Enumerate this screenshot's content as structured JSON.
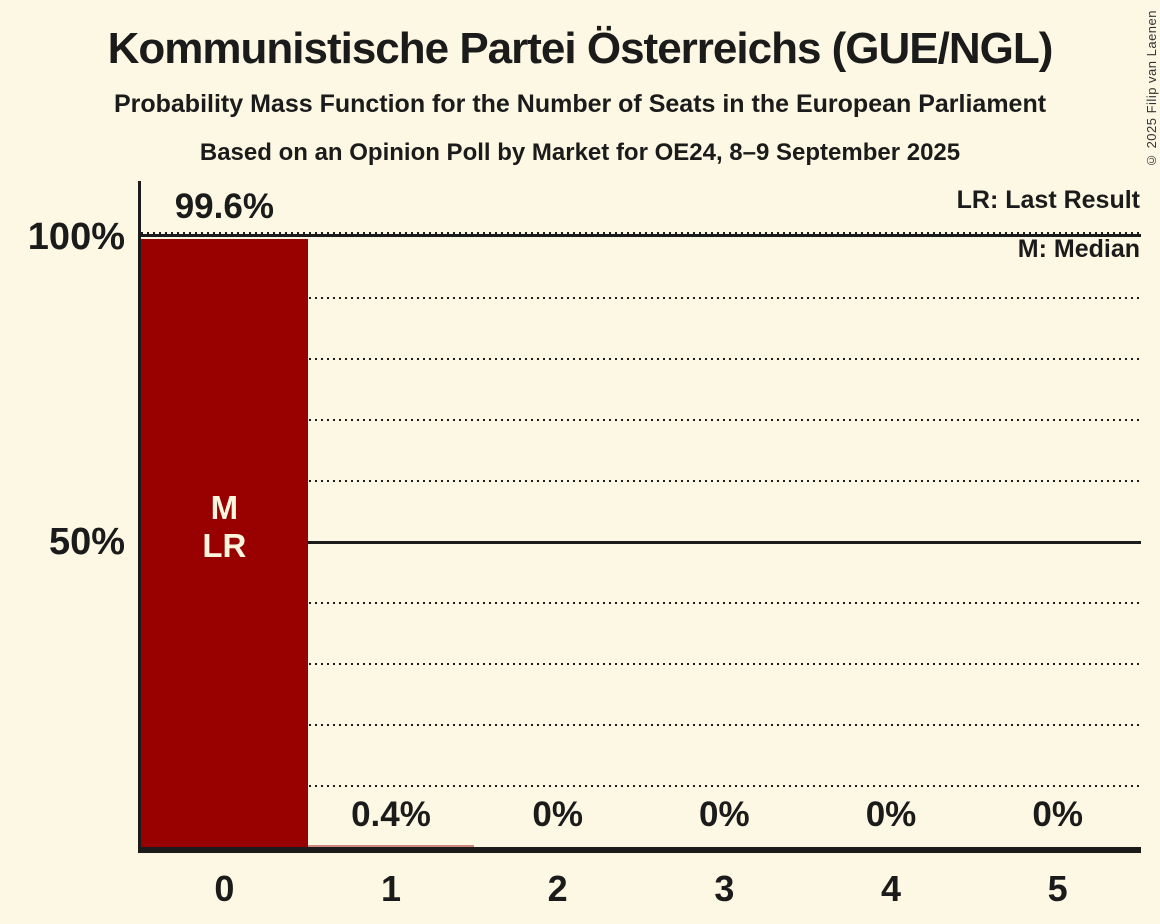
{
  "header": {
    "title": "Kommunistische Partei Österreichs (GUE/NGL)",
    "subtitle": "Probability Mass Function for the Number of Seats in the European Parliament",
    "poll_info": "Based on an Opinion Poll by Market for OE24, 8–9 September 2025"
  },
  "copyright": "© 2025 Filip van Laenen",
  "legend": {
    "lr": "LR: Last Result",
    "m": "M: Median"
  },
  "y_axis": {
    "top_label": "100%",
    "mid_label": "50%"
  },
  "colors": {
    "background": "#FCF8E3",
    "bar": "#990000",
    "text": "#1B1B1B",
    "bar_label_text": "#FBF5DE"
  },
  "chart_data": {
    "type": "bar",
    "title": "Kommunistische Partei Österreichs (GUE/NGL)",
    "subtitle": "Probability Mass Function for the Number of Seats in the European Parliament",
    "source_note": "Based on an Opinion Poll by Market for OE24, 8–9 September 2025",
    "categories": [
      "0",
      "1",
      "2",
      "3",
      "4",
      "5"
    ],
    "values": [
      99.6,
      0.4,
      0,
      0,
      0,
      0
    ],
    "value_labels": [
      "99.6%",
      "0.4%",
      "0%",
      "0%",
      "0%",
      "0%"
    ],
    "ylim": [
      0,
      100
    ],
    "y_ticks": [
      {
        "pct": 100,
        "label": "100%"
      },
      {
        "pct": 50,
        "label": "50%"
      }
    ],
    "solid_gridlines_pct": [
      100,
      50
    ],
    "dotted_gridlines_pct": [
      90,
      80,
      70,
      60,
      40,
      30,
      20,
      10
    ],
    "grid": "horizontal dotted every 10%",
    "legend_entries": [
      "LR: Last Result",
      "M: Median"
    ],
    "legend_position": "top-right",
    "annotations": [
      {
        "category": "0",
        "lines": [
          "M",
          "LR"
        ]
      }
    ]
  }
}
